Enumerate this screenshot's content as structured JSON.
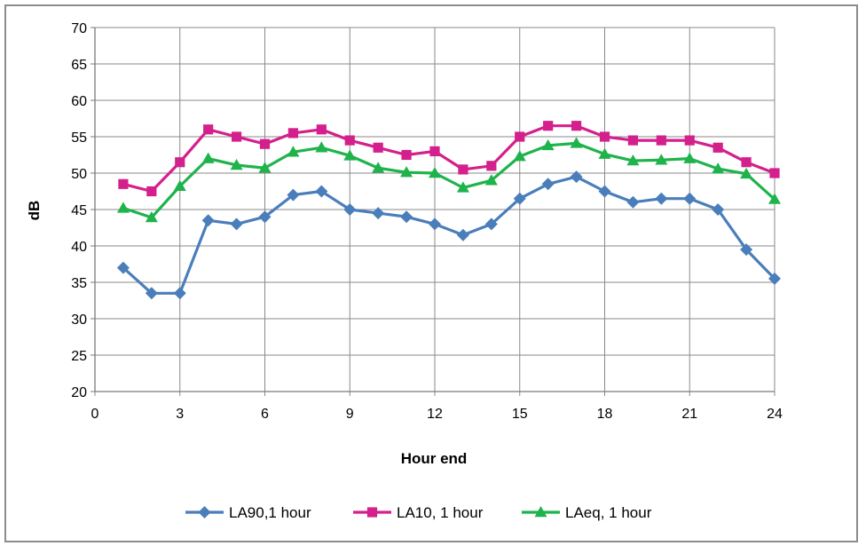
{
  "chart_data": {
    "type": "line",
    "xlabel": "Hour end",
    "ylabel": "dB",
    "xlim": [
      0,
      24
    ],
    "ylim": [
      20,
      70
    ],
    "x_ticks": [
      0,
      3,
      6,
      9,
      12,
      15,
      18,
      21,
      24
    ],
    "y_ticks": [
      20,
      25,
      30,
      35,
      40,
      45,
      50,
      55,
      60,
      65,
      70
    ],
    "grid": true,
    "legend_position": "bottom",
    "x": [
      1,
      2,
      3,
      4,
      5,
      6,
      7,
      8,
      9,
      10,
      11,
      12,
      13,
      14,
      15,
      16,
      17,
      18,
      19,
      20,
      21,
      22,
      23,
      24
    ],
    "series": [
      {
        "name": "LA90,1 hour",
        "color": "#4a7ebb",
        "marker": "diamond",
        "values": [
          37,
          33.5,
          33.5,
          43.5,
          43,
          44,
          47,
          47.5,
          45,
          44.5,
          44,
          43,
          41.5,
          43,
          46.5,
          48.5,
          49.5,
          47.5,
          46,
          46.5,
          46.5,
          45,
          39.5,
          35.5
        ]
      },
      {
        "name": "LA10, 1 hour",
        "color": "#d4208c",
        "marker": "square",
        "values": [
          48.5,
          47.5,
          51.5,
          56,
          55,
          54,
          55.5,
          56,
          54.5,
          53.5,
          52.5,
          53,
          50.5,
          51,
          55,
          56.5,
          56.5,
          55,
          54.5,
          54.5,
          54.5,
          53.5,
          51.5,
          50
        ]
      },
      {
        "name": "LAeq, 1 hour",
        "color": "#1fb34c",
        "marker": "triangle",
        "values": [
          45.2,
          43.9,
          48.2,
          52,
          51.1,
          50.7,
          52.9,
          53.5,
          52.4,
          50.7,
          50.1,
          50,
          48,
          49,
          52.3,
          53.8,
          54.1,
          52.6,
          51.7,
          51.8,
          52,
          50.6,
          49.9,
          46.4
        ]
      }
    ]
  }
}
